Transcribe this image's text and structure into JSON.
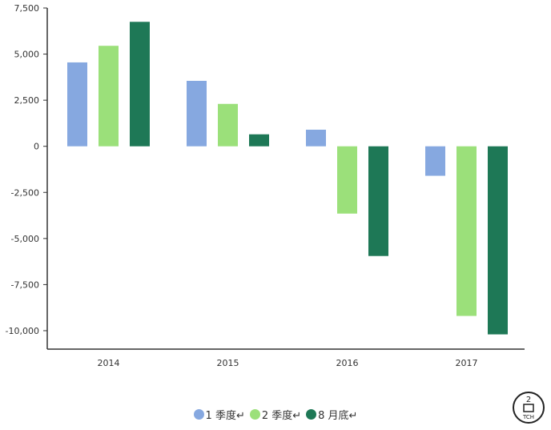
{
  "chart_data": {
    "type": "bar",
    "categories": [
      "2014",
      "2015",
      "2016",
      "2017"
    ],
    "series": [
      {
        "name": "1 季度",
        "values": [
          4550,
          3550,
          900,
          -1600
        ],
        "color": "#86a8e0"
      },
      {
        "name": "2 季度",
        "values": [
          5450,
          2300,
          -3650,
          -9200
        ],
        "color": "#9be07a"
      },
      {
        "name": "8 月底",
        "values": [
          6750,
          650,
          -5950,
          -10200
        ],
        "color": "#1e7856"
      }
    ],
    "ylim": [
      -11000,
      7500
    ],
    "yticks": [
      7500,
      5000,
      2500,
      0,
      -2500,
      -5000,
      -7500,
      -10000
    ],
    "ytick_labels": [
      "7,500",
      "5,000",
      "2,500",
      "0",
      "-2,500",
      "-5,000",
      "-7,500",
      "-10,000"
    ],
    "grid": false,
    "legend_position": "bottom-center",
    "legend_labels": [
      "1 季度↵",
      "2 季度↵",
      "8 月底↵"
    ]
  },
  "logo": {
    "text": "2 口 TCH",
    "icon": "stamp-logo-icon"
  }
}
